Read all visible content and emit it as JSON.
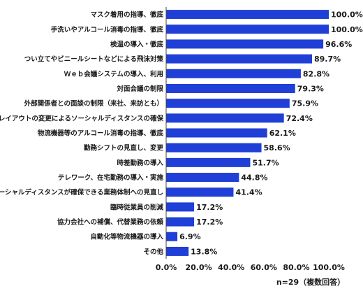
{
  "chart_data": {
    "type": "bar",
    "orientation": "horizontal",
    "categories": [
      "マスク着用の指導、徹底",
      "手洗いやアルコール消毒の指導、徹底",
      "検温の導入・徹底",
      "つい立てやビニールシートなどによる飛沫対策",
      "Ｗｅｂ会議システムの導入、利用",
      "対面会議の制限",
      "外部関係者との面談の制限（来社、来訪とも）",
      "事務所内の座席レイアウトの変更によるソーシャルディスタンスの確保",
      "物流機器等のアルコール消毒の指導、徹底",
      "勤務シフトの見直し、変更",
      "時差勤務の導入",
      "テレワーク、在宅勤務の導入・実施",
      "非接触やソーシャルディスタンスが確保できる業務体制への見直し",
      "臨時従業員の削減",
      "協力会社への補償、代替業務の依頼",
      "自動化等物流機器の導入",
      "その他"
    ],
    "values": [
      100.0,
      100.0,
      96.6,
      89.7,
      82.8,
      79.3,
      75.9,
      72.4,
      62.1,
      58.6,
      51.7,
      44.8,
      41.4,
      17.2,
      17.2,
      6.9,
      13.8
    ],
    "value_labels": [
      "100.0%",
      "100.0%",
      "96.6%",
      "89.7%",
      "82.8%",
      "79.3%",
      "75.9%",
      "72.4%",
      "62.1%",
      "58.6%",
      "51.7%",
      "44.8%",
      "41.4%",
      "17.2%",
      "17.2%",
      "6.9%",
      "13.8%"
    ],
    "x_ticks": [
      "0.0%",
      "20.0%",
      "40.0%",
      "60.0%",
      "80.0%",
      "100.0%"
    ],
    "xlim": [
      0,
      100
    ],
    "grid": false,
    "bar_color": "#1f3fd6",
    "note": "n=29（複数回答）"
  }
}
